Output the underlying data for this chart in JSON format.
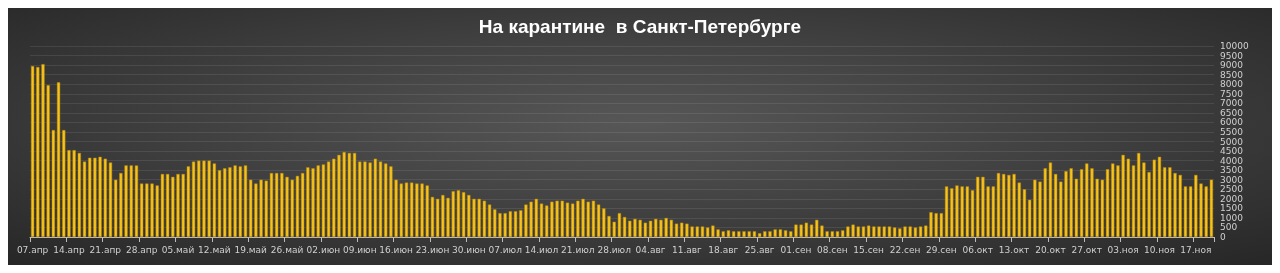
{
  "chart_data": {
    "type": "bar",
    "title": "На карантине  в Санкт-Петербурге",
    "categories": [
      "07.апр",
      null,
      null,
      null,
      null,
      null,
      null,
      "14.апр",
      null,
      null,
      null,
      null,
      null,
      null,
      "21.апр",
      null,
      null,
      null,
      null,
      null,
      null,
      "28.апр",
      null,
      null,
      null,
      null,
      null,
      null,
      "05.май",
      null,
      null,
      null,
      null,
      null,
      null,
      "12.май",
      null,
      null,
      null,
      null,
      null,
      null,
      "19.май",
      null,
      null,
      null,
      null,
      null,
      null,
      "26.май",
      null,
      null,
      null,
      null,
      null,
      null,
      "02.июн",
      null,
      null,
      null,
      null,
      null,
      null,
      "09.июн",
      null,
      null,
      null,
      null,
      null,
      null,
      "16.июн",
      null,
      null,
      null,
      null,
      null,
      null,
      "23.июн",
      null,
      null,
      null,
      null,
      null,
      null,
      "30.июн",
      null,
      null,
      null,
      null,
      null,
      null,
      "07.июл",
      null,
      null,
      null,
      null,
      null,
      null,
      "14.июл",
      null,
      null,
      null,
      null,
      null,
      null,
      "21.июл",
      null,
      null,
      null,
      null,
      null,
      null,
      "28.июл",
      null,
      null,
      null,
      null,
      null,
      null,
      "04.авг",
      null,
      null,
      null,
      null,
      null,
      null,
      "11.авг",
      null,
      null,
      null,
      null,
      null,
      null,
      "18.авг",
      null,
      null,
      null,
      null,
      null,
      null,
      "25.авг",
      null,
      null,
      null,
      null,
      null,
      null,
      "01.сен",
      null,
      null,
      null,
      null,
      null,
      null,
      "08.сен",
      null,
      null,
      null,
      null,
      null,
      null,
      "15.сен",
      null,
      null,
      null,
      null,
      null,
      null,
      "22.сен",
      null,
      null,
      null,
      null,
      null,
      null,
      "29.сен",
      null,
      null,
      null,
      null,
      null,
      null,
      "06.окт",
      null,
      null,
      null,
      null,
      null,
      null,
      "13.окт",
      null,
      null,
      null,
      null,
      null,
      null,
      "20.окт",
      null,
      null,
      null,
      null,
      null,
      null,
      "27.окт",
      null,
      null,
      null,
      null,
      null,
      null,
      "03.ноя",
      null,
      null,
      null,
      null,
      null,
      null,
      "10.ноя",
      null,
      null,
      null,
      null,
      null,
      null,
      "17.ноя",
      null,
      null,
      null
    ],
    "values": [
      8950,
      8900,
      9050,
      7950,
      5600,
      8100,
      5600,
      4550,
      4550,
      4400,
      3950,
      4150,
      4150,
      4200,
      4100,
      3900,
      3000,
      3350,
      3750,
      3750,
      3750,
      2800,
      2800,
      2800,
      2700,
      3300,
      3300,
      3150,
      3300,
      3300,
      3700,
      3950,
      4000,
      4000,
      4000,
      3850,
      3500,
      3600,
      3650,
      3750,
      3700,
      3750,
      3000,
      2800,
      3000,
      2950,
      3350,
      3350,
      3350,
      3150,
      3000,
      3200,
      3350,
      3650,
      3600,
      3750,
      3800,
      3950,
      4100,
      4300,
      4450,
      4400,
      4400,
      3950,
      3950,
      3900,
      4100,
      3950,
      3850,
      3700,
      3000,
      2800,
      2850,
      2850,
      2800,
      2800,
      2700,
      2100,
      2000,
      2200,
      2050,
      2400,
      2450,
      2350,
      2200,
      2000,
      2000,
      1900,
      1700,
      1450,
      1250,
      1250,
      1350,
      1350,
      1400,
      1700,
      1850,
      2000,
      1750,
      1650,
      1850,
      1900,
      1900,
      1800,
      1750,
      1900,
      2000,
      1850,
      1900,
      1700,
      1500,
      1100,
      800,
      1250,
      1050,
      850,
      950,
      900,
      750,
      850,
      950,
      900,
      1000,
      900,
      700,
      750,
      700,
      550,
      550,
      550,
      500,
      600,
      400,
      300,
      350,
      300,
      300,
      300,
      300,
      300,
      200,
      300,
      300,
      400,
      400,
      350,
      300,
      650,
      650,
      750,
      650,
      900,
      600,
      300,
      300,
      300,
      350,
      550,
      650,
      550,
      550,
      600,
      550,
      550,
      550,
      550,
      500,
      450,
      550,
      550,
      500,
      550,
      600,
      1300,
      1250,
      1250,
      2650,
      2550,
      2700,
      2650,
      2650,
      2450,
      3150,
      3150,
      2650,
      2650,
      3350,
      3300,
      3250,
      3300,
      2850,
      2500,
      1950,
      3000,
      2900,
      3600,
      3900,
      3300,
      2900,
      3450,
      3600,
      3050,
      3550,
      3850,
      3600,
      3050,
      3000,
      3550,
      3850,
      3750,
      4300,
      4100,
      3750,
      4400,
      3900,
      3400,
      4050,
      4200,
      3650,
      3650,
      3350,
      3250,
      2650,
      2650,
      3250,
      2800,
      2650,
      3000
    ],
    "color": "#f5c31c",
    "ylim": [
      0,
      10000
    ],
    "yticks": [
      0,
      500,
      1000,
      1500,
      2000,
      2500,
      3000,
      3500,
      4000,
      4500,
      5000,
      5500,
      6000,
      6500,
      7000,
      7500,
      8000,
      8500,
      9000,
      9500,
      10000
    ],
    "grid": "y"
  }
}
